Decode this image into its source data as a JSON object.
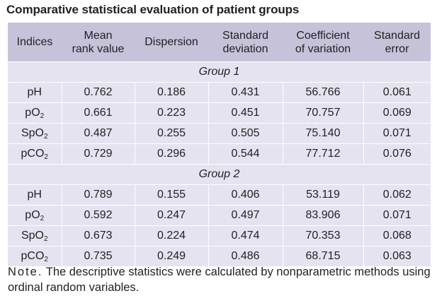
{
  "title": "Comparative statistical evaluation of patient groups",
  "table": {
    "headers": [
      [
        "Indices"
      ],
      [
        "Mean",
        "rank value"
      ],
      [
        "Dispersion"
      ],
      [
        "Standard",
        "deviation"
      ],
      [
        "Coefficient",
        "of variation"
      ],
      [
        "Standard",
        "error"
      ]
    ],
    "groups": [
      {
        "label": "Group 1",
        "rows": [
          {
            "index": "pH",
            "sub": "",
            "values": [
              "0.762",
              "0.186",
              "0.431",
              "56.766",
              "0.061"
            ]
          },
          {
            "index": "pO",
            "sub": "2",
            "values": [
              "0.661",
              "0.223",
              "0.451",
              "70.757",
              "0.069"
            ]
          },
          {
            "index": "SpO",
            "sub": "2",
            "values": [
              "0.487",
              "0.255",
              "0.505",
              "75.140",
              "0.071"
            ]
          },
          {
            "index": "pCO",
            "sub": "2",
            "values": [
              "0.729",
              "0.296",
              "0.544",
              "77.712",
              "0.076"
            ]
          }
        ]
      },
      {
        "label": "Group 2",
        "rows": [
          {
            "index": "pH",
            "sub": "",
            "values": [
              "0.789",
              "0.155",
              "0.406",
              "53.119",
              "0.062"
            ]
          },
          {
            "index": "pO",
            "sub": "2",
            "values": [
              "0.592",
              "0.247",
              "0.497",
              "83.906",
              "0.071"
            ]
          },
          {
            "index": "SpO",
            "sub": "2",
            "values": [
              "0.673",
              "0.224",
              "0.474",
              "70.353",
              "0.068"
            ]
          },
          {
            "index": "pCO",
            "sub": "2",
            "values": [
              "0.735",
              "0.249",
              "0.486",
              "68.715",
              "0.063"
            ]
          }
        ]
      }
    ]
  },
  "note": {
    "label": "Note.",
    "text": "The descriptive statistics were calculated by nonparametric methods using ordinal random variables."
  }
}
